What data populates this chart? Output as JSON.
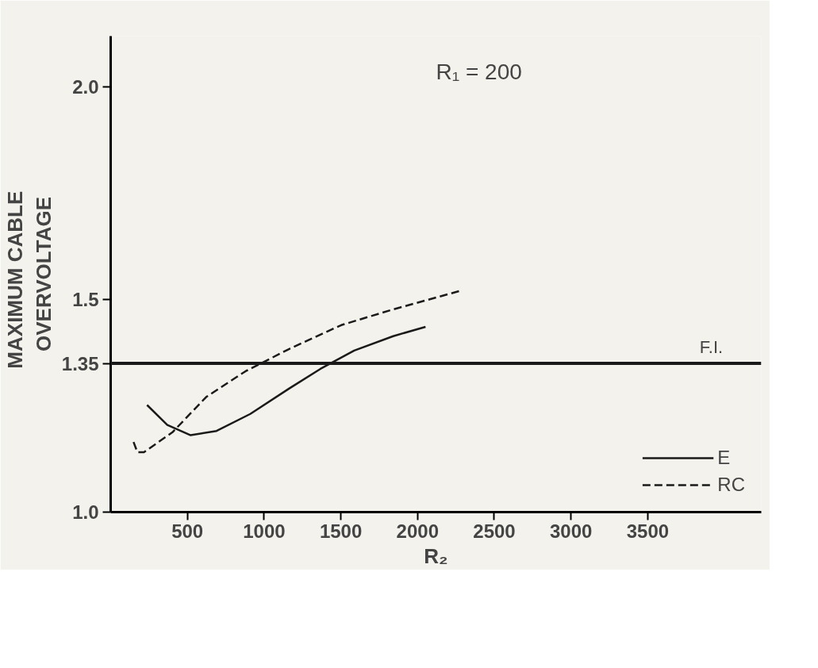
{
  "chart_data": {
    "type": "line",
    "xlabel": "R₂",
    "ylabel": "MAXIMUM   CABLE\nOVERVOLTAGE",
    "annotations": [
      "R₁ = 200"
    ],
    "xlim": [
      0,
      4240
    ],
    "ylim": [
      1.0,
      2.12
    ],
    "xticks": [
      500,
      1000,
      1500,
      2000,
      2500,
      3000,
      3500
    ],
    "yticks": [
      {
        "value": 1.0,
        "label": "1.0"
      },
      1.35,
      1.5,
      {
        "value": 2.0,
        "label": "2.0"
      }
    ],
    "grid": false,
    "legend": "bottom right",
    "marker": "none",
    "ref_lines": [
      {
        "axis": "y",
        "value": 1.35,
        "label": "F.I.",
        "color": "#1a1a1a"
      }
    ],
    "series": [
      {
        "name": "E",
        "color": "#1a1a1a",
        "line_style": "solid",
        "x": [
          237,
          369,
          521,
          690,
          910,
          1164,
          1367,
          1587,
          1841,
          2052
        ],
        "values": [
          1.252,
          1.205,
          1.181,
          1.191,
          1.231,
          1.291,
          1.337,
          1.38,
          1.414,
          1.436
        ]
      },
      {
        "name": "RC",
        "color": "#1a1a1a",
        "line_style": "dashed",
        "x": [
          149,
          174,
          217,
          403,
          623,
          877,
          1164,
          1503,
          1841,
          2272
        ],
        "values": [
          1.165,
          1.141,
          1.141,
          1.188,
          1.271,
          1.331,
          1.384,
          1.44,
          1.477,
          1.52
        ]
      }
    ]
  }
}
